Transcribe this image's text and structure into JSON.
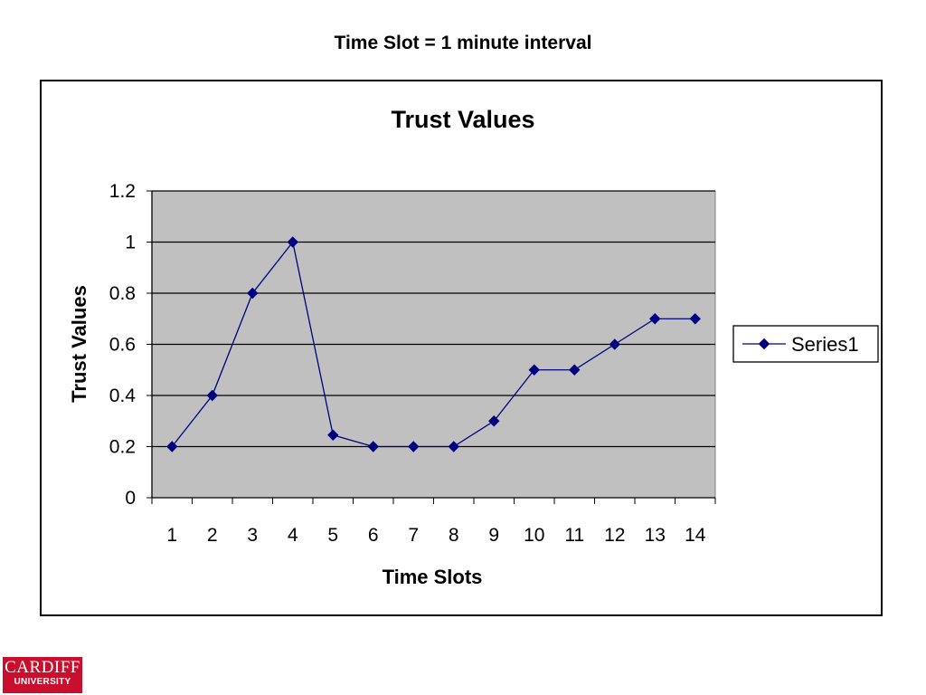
{
  "slide": {
    "title": "Time Slot = 1 minute interval"
  },
  "logo": {
    "line1": "CARDIFF",
    "line2": "UNIVERSITY",
    "color": "#c8102e"
  },
  "chart_data": {
    "type": "line",
    "title": "Trust Values",
    "xlabel": "Time Slots",
    "ylabel": "Trust Values",
    "categories": [
      "1",
      "2",
      "3",
      "4",
      "5",
      "6",
      "7",
      "8",
      "9",
      "10",
      "11",
      "12",
      "13",
      "14"
    ],
    "series": [
      {
        "name": "Series1",
        "values": [
          0.2,
          0.4,
          0.8,
          1.0,
          0.245,
          0.2,
          0.2,
          0.2,
          0.3,
          0.5,
          0.5,
          0.6,
          0.7,
          0.7
        ],
        "color": "#000080",
        "marker": "diamond"
      }
    ],
    "ylim": [
      0,
      1.2
    ],
    "yticks": [
      "0",
      "0.2",
      "0.4",
      "0.6",
      "0.8",
      "1",
      "1.2"
    ],
    "grid": true,
    "plot_background": "#c0c0c0",
    "legend_position": "right"
  }
}
